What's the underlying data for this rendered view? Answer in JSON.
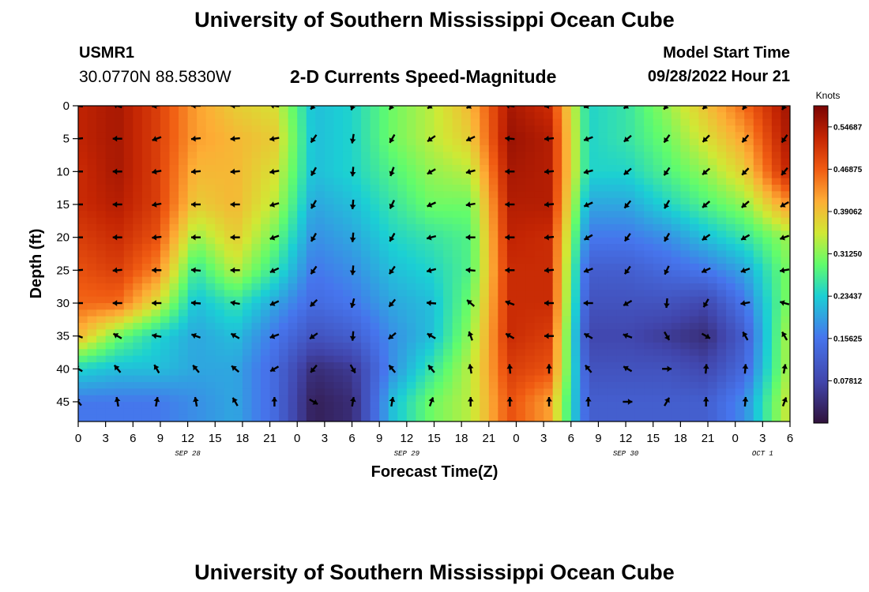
{
  "page": {
    "title": "University of Southern Mississippi Ocean Cube",
    "footer_title": "University of Southern Mississippi Ocean Cube",
    "station_id": "USMR1",
    "coordinates": "30.0770N  88.5830W",
    "subtitle": "2-D Currents Speed-Magnitude",
    "model_start_label": "Model Start Time",
    "model_start_value": "09/28/2022 Hour 21"
  },
  "chart_data": {
    "type": "heatmap",
    "title": "2-D Currents Speed-Magnitude",
    "xlabel": "Forecast Time(Z)",
    "ylabel": "Depth (ft)",
    "x_range_hours": [
      0,
      78
    ],
    "y_range_ft": [
      0,
      48
    ],
    "x_ticks": [
      {
        "h": 0,
        "label": "0"
      },
      {
        "h": 3,
        "label": "3"
      },
      {
        "h": 6,
        "label": "6"
      },
      {
        "h": 9,
        "label": "9"
      },
      {
        "h": 12,
        "label": "12"
      },
      {
        "h": 15,
        "label": "15"
      },
      {
        "h": 18,
        "label": "18"
      },
      {
        "h": 21,
        "label": "21"
      },
      {
        "h": 24,
        "label": "0"
      },
      {
        "h": 27,
        "label": "3"
      },
      {
        "h": 30,
        "label": "6"
      },
      {
        "h": 33,
        "label": "9"
      },
      {
        "h": 36,
        "label": "12"
      },
      {
        "h": 39,
        "label": "15"
      },
      {
        "h": 42,
        "label": "18"
      },
      {
        "h": 45,
        "label": "21"
      },
      {
        "h": 48,
        "label": "0"
      },
      {
        "h": 51,
        "label": "3"
      },
      {
        "h": 54,
        "label": "6"
      },
      {
        "h": 57,
        "label": "9"
      },
      {
        "h": 60,
        "label": "12"
      },
      {
        "h": 63,
        "label": "15"
      },
      {
        "h": 66,
        "label": "18"
      },
      {
        "h": 69,
        "label": "21"
      },
      {
        "h": 72,
        "label": "0"
      },
      {
        "h": 75,
        "label": "3"
      },
      {
        "h": 78,
        "label": "6"
      }
    ],
    "date_labels": [
      {
        "h": 12,
        "label": "SEP 28"
      },
      {
        "h": 36,
        "label": "SEP 29"
      },
      {
        "h": 60,
        "label": "SEP 30"
      },
      {
        "h": 75,
        "label": "OCT 1"
      }
    ],
    "y_ticks": [
      0,
      5,
      10,
      15,
      20,
      25,
      30,
      35,
      40,
      45
    ],
    "colorbar": {
      "title": "Knots",
      "min": 0.0,
      "max": 0.5859,
      "ticks": [
        0.07812,
        0.15625,
        0.23437,
        0.3125,
        0.39062,
        0.46875,
        0.54687
      ],
      "tick_labels": [
        "0.07812",
        "0.15625",
        "0.23437",
        "0.31250",
        "0.39062",
        "0.46875",
        "0.54687"
      ]
    },
    "depth_levels_ft": [
      0,
      5,
      10,
      15,
      20,
      25,
      30,
      35,
      40,
      45
    ],
    "time_hours": [
      0,
      4.3,
      8.6,
      12.9,
      17.2,
      21.5,
      25.8,
      30.1,
      34.4,
      38.7,
      43,
      47.3,
      51.6,
      55.9,
      60.2,
      64.5,
      68.8,
      73.1,
      77.4
    ],
    "speed_knots": [
      [
        0.53,
        0.55,
        0.5,
        0.42,
        0.38,
        0.36,
        0.22,
        0.24,
        0.3,
        0.34,
        0.4,
        0.55,
        0.52,
        0.24,
        0.26,
        0.32,
        0.39,
        0.46,
        0.55
      ],
      [
        0.53,
        0.55,
        0.5,
        0.42,
        0.4,
        0.38,
        0.22,
        0.24,
        0.3,
        0.34,
        0.38,
        0.56,
        0.54,
        0.24,
        0.26,
        0.3,
        0.36,
        0.42,
        0.54
      ],
      [
        0.52,
        0.55,
        0.5,
        0.4,
        0.4,
        0.36,
        0.22,
        0.24,
        0.28,
        0.32,
        0.34,
        0.55,
        0.54,
        0.24,
        0.24,
        0.28,
        0.32,
        0.38,
        0.52
      ],
      [
        0.52,
        0.54,
        0.5,
        0.38,
        0.4,
        0.34,
        0.2,
        0.22,
        0.26,
        0.3,
        0.3,
        0.54,
        0.54,
        0.2,
        0.2,
        0.24,
        0.28,
        0.32,
        0.42
      ],
      [
        0.5,
        0.52,
        0.48,
        0.32,
        0.38,
        0.3,
        0.18,
        0.2,
        0.24,
        0.26,
        0.28,
        0.53,
        0.52,
        0.16,
        0.16,
        0.18,
        0.22,
        0.26,
        0.32
      ],
      [
        0.48,
        0.5,
        0.44,
        0.26,
        0.34,
        0.26,
        0.16,
        0.18,
        0.22,
        0.24,
        0.28,
        0.52,
        0.52,
        0.12,
        0.12,
        0.14,
        0.16,
        0.2,
        0.3
      ],
      [
        0.46,
        0.46,
        0.36,
        0.22,
        0.26,
        0.2,
        0.14,
        0.16,
        0.2,
        0.22,
        0.3,
        0.52,
        0.52,
        0.1,
        0.1,
        0.1,
        0.08,
        0.16,
        0.3
      ],
      [
        0.4,
        0.3,
        0.24,
        0.2,
        0.22,
        0.16,
        0.1,
        0.12,
        0.18,
        0.22,
        0.32,
        0.52,
        0.5,
        0.08,
        0.08,
        0.06,
        0.04,
        0.12,
        0.32
      ],
      [
        0.24,
        0.22,
        0.22,
        0.2,
        0.2,
        0.14,
        0.04,
        0.06,
        0.18,
        0.26,
        0.34,
        0.5,
        0.48,
        0.1,
        0.1,
        0.1,
        0.08,
        0.14,
        0.32
      ],
      [
        0.16,
        0.16,
        0.16,
        0.18,
        0.2,
        0.14,
        0.02,
        0.04,
        0.22,
        0.3,
        0.34,
        0.48,
        0.42,
        0.12,
        0.12,
        0.12,
        0.12,
        0.18,
        0.34
      ]
    ],
    "direction_deg": [
      [
        280,
        290,
        260,
        270,
        270,
        280,
        220,
        200,
        215,
        235,
        240,
        280,
        260,
        250,
        235,
        220,
        225,
        215,
        210
      ],
      [
        265,
        270,
        250,
        265,
        265,
        260,
        215,
        190,
        210,
        235,
        245,
        275,
        265,
        250,
        230,
        215,
        225,
        220,
        215
      ],
      [
        270,
        270,
        260,
        265,
        265,
        260,
        210,
        185,
        200,
        240,
        255,
        270,
        265,
        255,
        230,
        215,
        230,
        225,
        220
      ],
      [
        270,
        270,
        260,
        270,
        270,
        255,
        210,
        185,
        205,
        245,
        260,
        270,
        265,
        245,
        220,
        210,
        230,
        230,
        240
      ],
      [
        270,
        270,
        265,
        270,
        270,
        250,
        210,
        185,
        210,
        255,
        270,
        270,
        265,
        240,
        215,
        210,
        235,
        240,
        250
      ],
      [
        265,
        265,
        270,
        275,
        270,
        245,
        215,
        185,
        215,
        255,
        275,
        270,
        265,
        250,
        215,
        205,
        245,
        250,
        260
      ],
      [
        270,
        270,
        270,
        275,
        280,
        245,
        225,
        195,
        220,
        275,
        310,
        290,
        270,
        270,
        240,
        185,
        210,
        260,
        285
      ],
      [
        290,
        300,
        280,
        290,
        300,
        250,
        235,
        185,
        230,
        300,
        340,
        300,
        270,
        300,
        290,
        150,
        120,
        330,
        330
      ],
      [
        300,
        320,
        330,
        320,
        310,
        240,
        220,
        150,
        320,
        320,
        350,
        355,
        0,
        320,
        300,
        90,
        5,
        5,
        10
      ],
      [
        320,
        350,
        10,
        350,
        330,
        0,
        120,
        10,
        10,
        20,
        0,
        0,
        0,
        0,
        90,
        30,
        0,
        5,
        20
      ]
    ]
  }
}
